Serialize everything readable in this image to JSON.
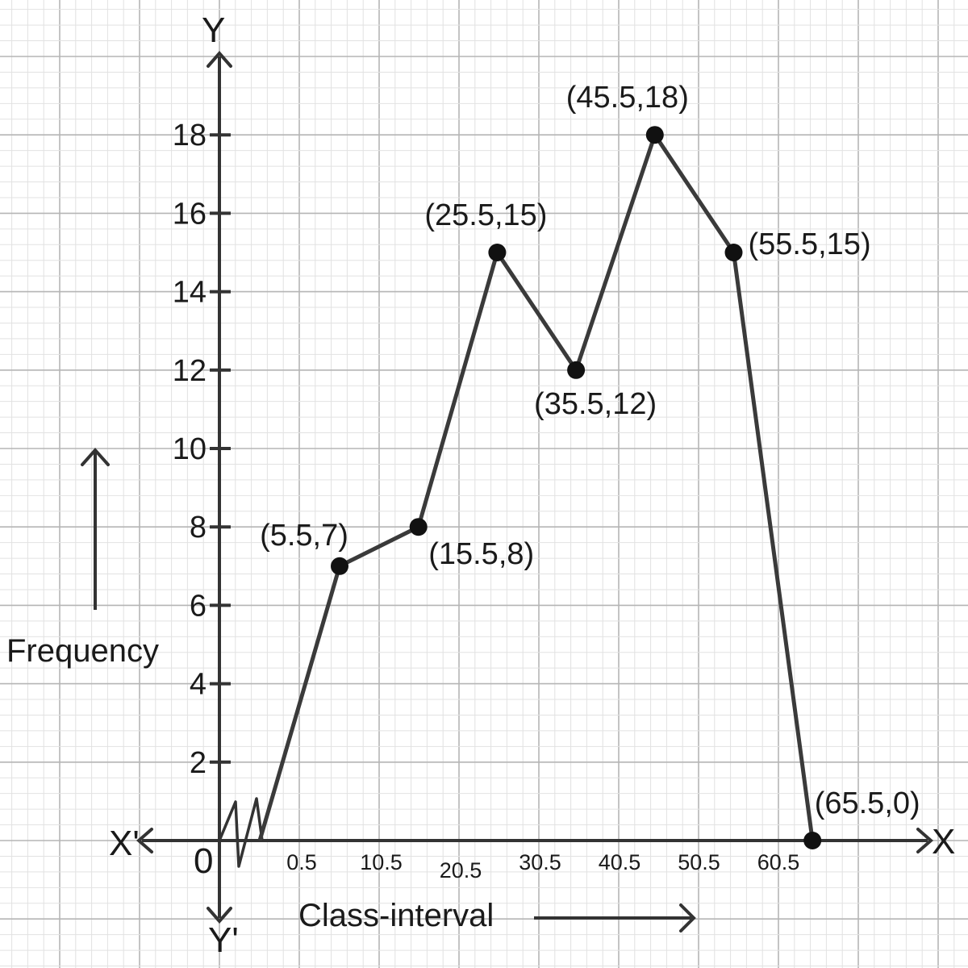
{
  "chart_data": {
    "type": "line",
    "title": "",
    "xlabel": "Class-interval",
    "ylabel": "Frequency",
    "axis_letters": {
      "x": "X",
      "x_neg": "X'",
      "y": "Y",
      "y_neg": "Y'",
      "origin": "0"
    },
    "y_ticks": [
      2,
      4,
      6,
      8,
      10,
      12,
      14,
      16,
      18
    ],
    "ylim": [
      0,
      19
    ],
    "x_tick_labels": [
      "0.5",
      "10.5",
      "20.5",
      "30.5",
      "40.5",
      "50.5",
      "60.5"
    ],
    "x_tick_values": [
      0.5,
      10.5,
      20.5,
      30.5,
      40.5,
      50.5,
      60.5
    ],
    "axis_break": true,
    "series": [
      {
        "points": [
          {
            "x": 5.5,
            "y": 7,
            "label": "(5.5,7)"
          },
          {
            "x": 15.5,
            "y": 8,
            "label": "(15.5,8)"
          },
          {
            "x": 25.5,
            "y": 15,
            "label": "(25.5,15)"
          },
          {
            "x": 35.5,
            "y": 12,
            "label": "(35.5,12)"
          },
          {
            "x": 45.5,
            "y": 18,
            "label": "(45.5,18)"
          },
          {
            "x": 55.5,
            "y": 15,
            "label": "(55.5,15)"
          },
          {
            "x": 65.5,
            "y": 0,
            "label": "(65.5,0)"
          }
        ]
      }
    ],
    "grid": true,
    "colors": {
      "line": "#3a3a3a",
      "point": "#111111",
      "grid_major": "#b5b5b5",
      "grid_minor": "#e2e2e2",
      "axis": "#333333"
    }
  }
}
